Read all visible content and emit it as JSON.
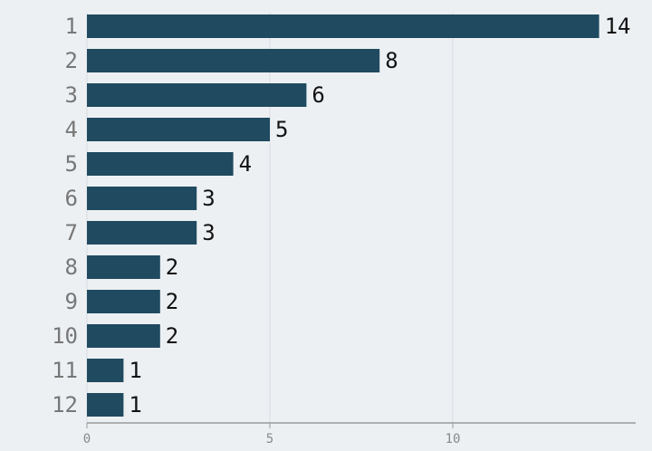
{
  "chart_data": {
    "type": "bar",
    "orientation": "horizontal",
    "categories": [
      "1",
      "2",
      "3",
      "4",
      "5",
      "6",
      "7",
      "8",
      "9",
      "10",
      "11",
      "12"
    ],
    "values": [
      14,
      8,
      6,
      5,
      4,
      3,
      3,
      2,
      2,
      2,
      1,
      1
    ],
    "color": "#1f4a5f",
    "xlim": [
      0,
      15
    ],
    "xticks": [
      0,
      5,
      10
    ],
    "grid": true
  }
}
